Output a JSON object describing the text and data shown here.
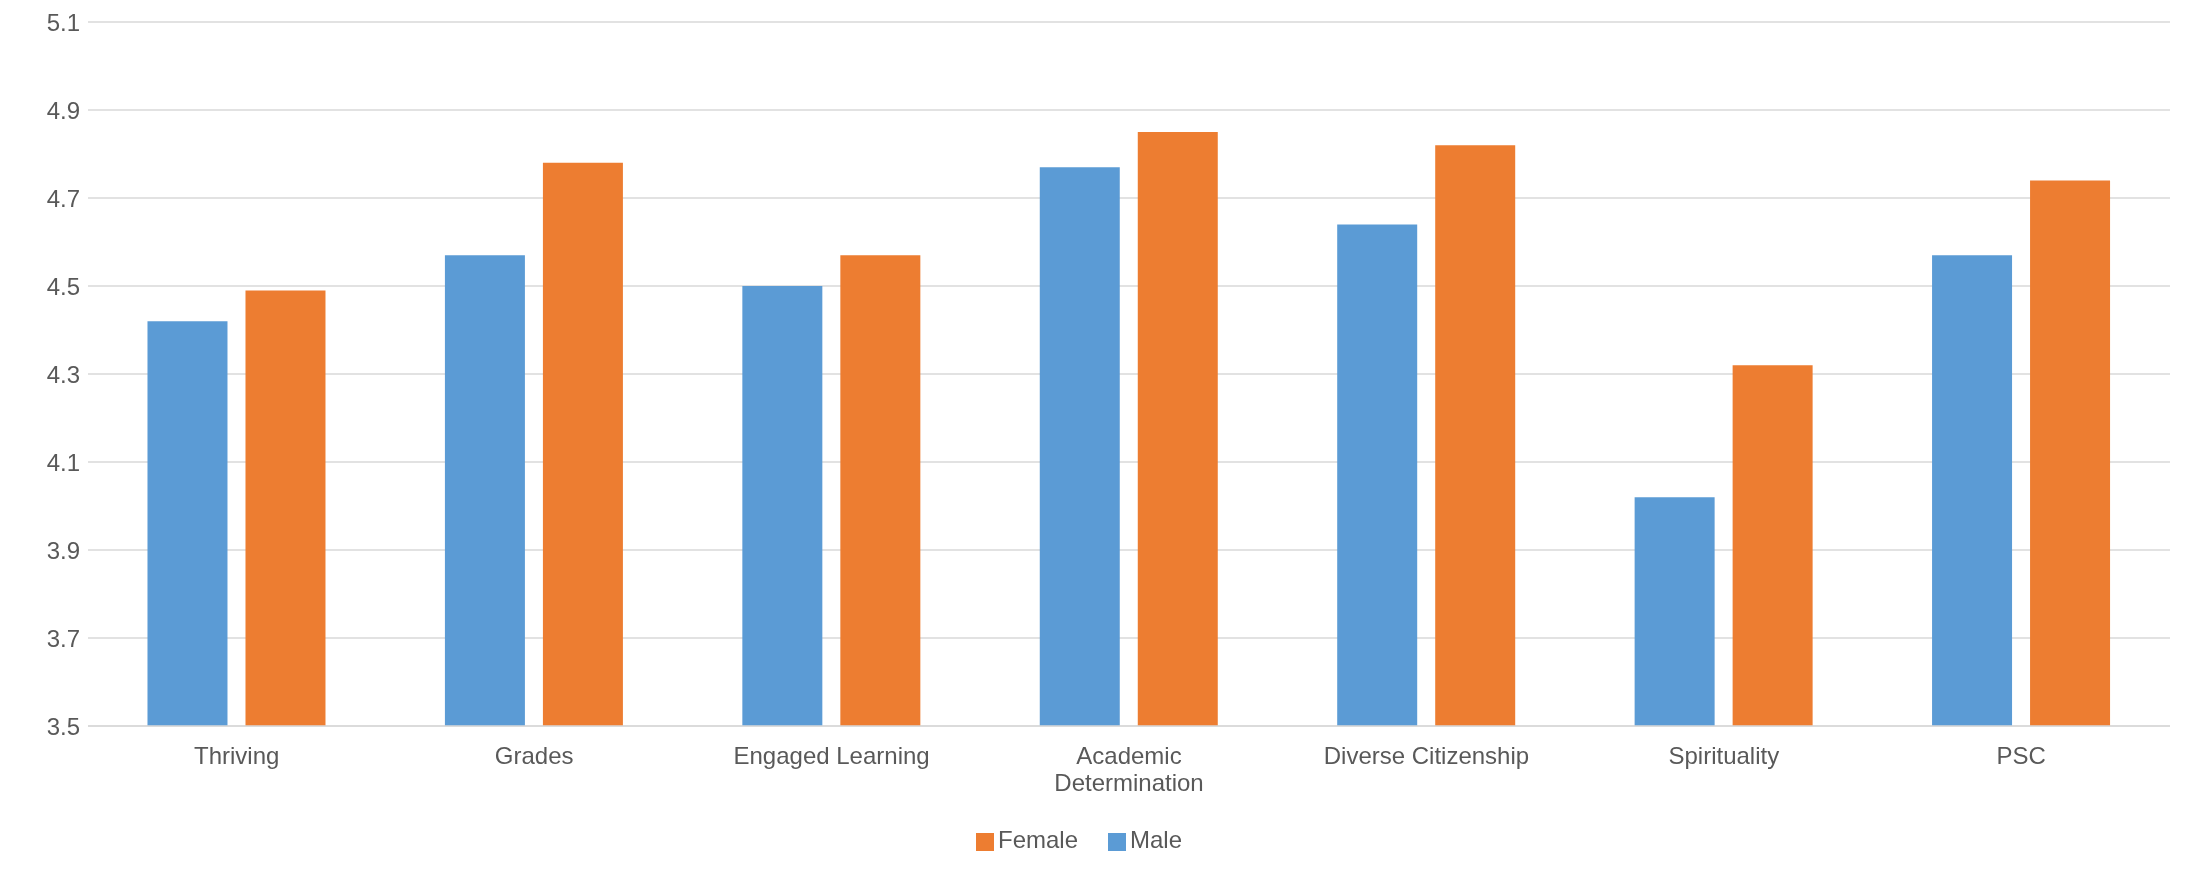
{
  "chart_data": {
    "type": "bar",
    "categories": [
      "Thriving",
      "Grades",
      "Engaged Learning",
      "Academic Determination",
      "Diverse Citizenship",
      "Spirituality",
      "PSC"
    ],
    "series": [
      {
        "name": "Male",
        "color": "#5b9bd5",
        "values": [
          4.42,
          4.57,
          4.5,
          4.77,
          4.64,
          4.02,
          4.57
        ]
      },
      {
        "name": "Female",
        "color": "#ed7d31",
        "values": [
          4.49,
          4.78,
          4.57,
          4.85,
          4.82,
          4.32,
          4.74
        ]
      }
    ],
    "ylim": [
      3.5,
      5.1
    ],
    "yticks": [
      3.5,
      3.7,
      3.9,
      4.1,
      4.3,
      4.5,
      4.7,
      4.9,
      5.1
    ],
    "grid": "y",
    "legend": "bottom"
  }
}
